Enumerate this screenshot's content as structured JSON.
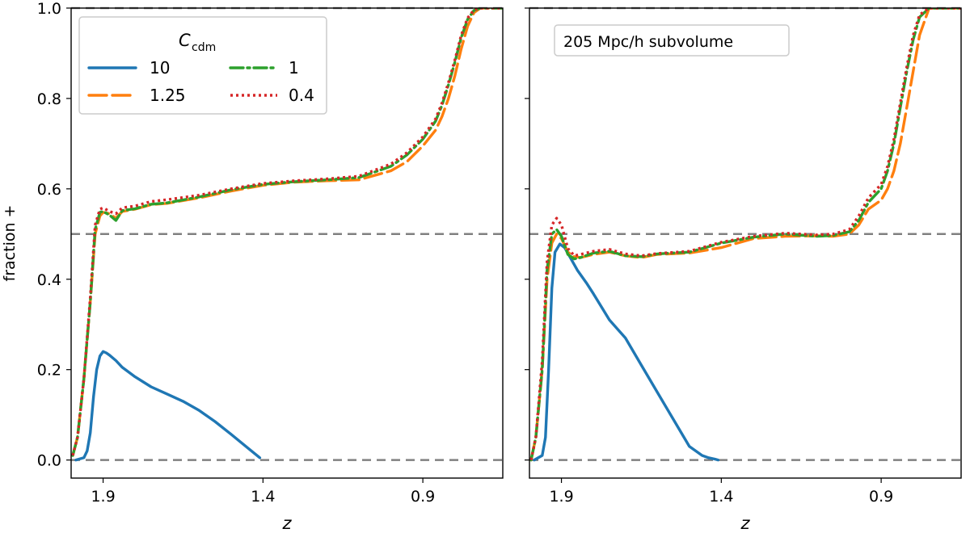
{
  "chart_data": [
    {
      "type": "line",
      "panel": "left",
      "xlabel": "z",
      "ylabel": "fraction +",
      "xlim": [
        2.0,
        0.65
      ],
      "ylim": [
        -0.04,
        1.0
      ],
      "xticks": [
        1.9,
        1.4,
        0.9
      ],
      "xtick_labels": [
        "1.9",
        "1.4",
        "0.9"
      ],
      "yticks": [
        0.0,
        0.2,
        0.4,
        0.6,
        0.8,
        1.0
      ],
      "ytick_labels": [
        "0.0",
        "0.2",
        "0.4",
        "0.6",
        "0.8",
        "1.0"
      ],
      "reference_lines": [
        0.0,
        0.5,
        1.0
      ],
      "legend": {
        "title": "C",
        "title_subscript": "cdm",
        "placement": "top-left",
        "columns": 2
      },
      "series": [
        {
          "name": "10",
          "color": "#1f77b4",
          "dash": "solid",
          "x": [
            1.985,
            1.96,
            1.95,
            1.94,
            1.93,
            1.92,
            1.91,
            1.9,
            1.89,
            1.88,
            1.86,
            1.84,
            1.8,
            1.75,
            1.7,
            1.65,
            1.6,
            1.55,
            1.5,
            1.45,
            1.41
          ],
          "y": [
            0.0,
            0.005,
            0.02,
            0.06,
            0.14,
            0.2,
            0.23,
            0.24,
            0.237,
            0.232,
            0.22,
            0.205,
            0.184,
            0.162,
            0.146,
            0.13,
            0.11,
            0.085,
            0.057,
            0.028,
            0.005
          ]
        },
        {
          "name": "1.25",
          "color": "#ff7f0e",
          "dash": "dashed",
          "x": [
            1.995,
            1.98,
            1.96,
            1.94,
            1.925,
            1.91,
            1.9,
            1.88,
            1.86,
            1.84,
            1.8,
            1.75,
            1.7,
            1.6,
            1.5,
            1.4,
            1.3,
            1.2,
            1.1,
            1.0,
            0.95,
            0.9,
            0.86,
            0.84,
            0.82,
            0.8,
            0.78,
            0.76,
            0.74,
            0.72,
            0.65
          ],
          "y": [
            0.01,
            0.05,
            0.18,
            0.35,
            0.5,
            0.54,
            0.548,
            0.545,
            0.535,
            0.55,
            0.555,
            0.565,
            0.568,
            0.58,
            0.595,
            0.608,
            0.615,
            0.618,
            0.62,
            0.64,
            0.66,
            0.695,
            0.73,
            0.76,
            0.8,
            0.85,
            0.91,
            0.96,
            0.99,
            1.0,
            1.0
          ]
        },
        {
          "name": "1",
          "color": "#2ca02c",
          "dash": "dashdot",
          "x": [
            1.995,
            1.98,
            1.96,
            1.94,
            1.925,
            1.91,
            1.9,
            1.88,
            1.86,
            1.84,
            1.8,
            1.75,
            1.7,
            1.6,
            1.5,
            1.4,
            1.3,
            1.2,
            1.1,
            1.0,
            0.95,
            0.9,
            0.86,
            0.84,
            0.82,
            0.8,
            0.78,
            0.76,
            0.74,
            0.72,
            0.65
          ],
          "y": [
            0.01,
            0.05,
            0.18,
            0.35,
            0.51,
            0.548,
            0.55,
            0.542,
            0.53,
            0.552,
            0.556,
            0.566,
            0.569,
            0.582,
            0.598,
            0.61,
            0.616,
            0.62,
            0.625,
            0.65,
            0.675,
            0.71,
            0.75,
            0.785,
            0.83,
            0.88,
            0.935,
            0.975,
            0.995,
            1.0,
            1.0
          ]
        },
        {
          "name": "0.4",
          "color": "#d62728",
          "dash": "dotted",
          "x": [
            1.995,
            1.98,
            1.96,
            1.94,
            1.925,
            1.91,
            1.9,
            1.88,
            1.86,
            1.84,
            1.8,
            1.75,
            1.7,
            1.6,
            1.5,
            1.4,
            1.3,
            1.2,
            1.1,
            1.0,
            0.95,
            0.9,
            0.86,
            0.84,
            0.82,
            0.8,
            0.78,
            0.76,
            0.74,
            0.72,
            0.65
          ],
          "y": [
            0.01,
            0.05,
            0.18,
            0.36,
            0.52,
            0.555,
            0.558,
            0.55,
            0.545,
            0.558,
            0.562,
            0.572,
            0.576,
            0.586,
            0.6,
            0.612,
            0.618,
            0.622,
            0.628,
            0.655,
            0.68,
            0.715,
            0.755,
            0.79,
            0.835,
            0.885,
            0.94,
            0.978,
            0.996,
            1.0,
            1.0
          ]
        }
      ]
    },
    {
      "type": "line",
      "panel": "right",
      "xlabel": "z",
      "xlim": [
        2.0,
        0.65
      ],
      "ylim": [
        -0.04,
        1.0
      ],
      "xticks": [
        1.9,
        1.4,
        0.9
      ],
      "xtick_labels": [
        "1.9",
        "1.4",
        "0.9"
      ],
      "yticks": [
        0.0,
        0.2,
        0.4,
        0.6,
        0.8,
        1.0
      ],
      "reference_lines": [
        0.0,
        0.5,
        1.0
      ],
      "annotation": "205 Mpc/h subvolume",
      "series": [
        {
          "name": "10",
          "color": "#1f77b4",
          "dash": "solid",
          "x": [
            1.985,
            1.96,
            1.95,
            1.94,
            1.93,
            1.92,
            1.905,
            1.89,
            1.87,
            1.85,
            1.82,
            1.8,
            1.75,
            1.7,
            1.65,
            1.6,
            1.55,
            1.5,
            1.46,
            1.44,
            1.42,
            1.41
          ],
          "y": [
            0.0,
            0.01,
            0.05,
            0.2,
            0.38,
            0.46,
            0.478,
            0.47,
            0.445,
            0.42,
            0.39,
            0.368,
            0.31,
            0.27,
            0.21,
            0.15,
            0.09,
            0.03,
            0.01,
            0.005,
            0.002,
            0.0
          ]
        },
        {
          "name": "1.25",
          "color": "#ff7f0e",
          "dash": "dashed",
          "x": [
            1.995,
            1.98,
            1.96,
            1.945,
            1.93,
            1.915,
            1.9,
            1.88,
            1.86,
            1.84,
            1.8,
            1.75,
            1.7,
            1.65,
            1.6,
            1.5,
            1.4,
            1.3,
            1.2,
            1.1,
            1.05,
            1.0,
            0.97,
            0.94,
            0.9,
            0.88,
            0.86,
            0.84,
            0.82,
            0.8,
            0.78,
            0.75,
            0.65
          ],
          "y": [
            0.0,
            0.05,
            0.2,
            0.4,
            0.48,
            0.5,
            0.49,
            0.46,
            0.45,
            0.448,
            0.455,
            0.46,
            0.452,
            0.448,
            0.455,
            0.458,
            0.47,
            0.49,
            0.495,
            0.496,
            0.495,
            0.5,
            0.52,
            0.555,
            0.575,
            0.6,
            0.64,
            0.7,
            0.78,
            0.86,
            0.94,
            1.0,
            1.0
          ]
        },
        {
          "name": "1",
          "color": "#2ca02c",
          "dash": "dashdot",
          "x": [
            1.995,
            1.98,
            1.96,
            1.945,
            1.93,
            1.915,
            1.9,
            1.88,
            1.86,
            1.84,
            1.8,
            1.75,
            1.7,
            1.65,
            1.6,
            1.5,
            1.4,
            1.3,
            1.2,
            1.1,
            1.05,
            1.0,
            0.97,
            0.94,
            0.9,
            0.88,
            0.86,
            0.84,
            0.82,
            0.8,
            0.78,
            0.75,
            0.65
          ],
          "y": [
            0.0,
            0.05,
            0.2,
            0.42,
            0.5,
            0.51,
            0.495,
            0.455,
            0.445,
            0.448,
            0.458,
            0.462,
            0.452,
            0.45,
            0.456,
            0.46,
            0.48,
            0.493,
            0.5,
            0.495,
            0.497,
            0.505,
            0.53,
            0.57,
            0.6,
            0.64,
            0.7,
            0.78,
            0.86,
            0.93,
            0.98,
            1.0,
            1.0
          ]
        },
        {
          "name": "0.4",
          "color": "#d62728",
          "dash": "dotted",
          "x": [
            1.995,
            1.98,
            1.96,
            1.945,
            1.93,
            1.915,
            1.9,
            1.88,
            1.86,
            1.84,
            1.8,
            1.75,
            1.7,
            1.65,
            1.6,
            1.5,
            1.4,
            1.3,
            1.2,
            1.1,
            1.05,
            1.0,
            0.97,
            0.94,
            0.9,
            0.88,
            0.86,
            0.84,
            0.82,
            0.8,
            0.78,
            0.75,
            0.65
          ],
          "y": [
            0.0,
            0.05,
            0.22,
            0.44,
            0.52,
            0.535,
            0.52,
            0.468,
            0.452,
            0.455,
            0.462,
            0.466,
            0.456,
            0.452,
            0.457,
            0.462,
            0.482,
            0.495,
            0.502,
            0.498,
            0.5,
            0.51,
            0.54,
            0.58,
            0.61,
            0.65,
            0.71,
            0.79,
            0.87,
            0.94,
            0.985,
            1.0,
            1.0
          ]
        }
      ]
    }
  ]
}
